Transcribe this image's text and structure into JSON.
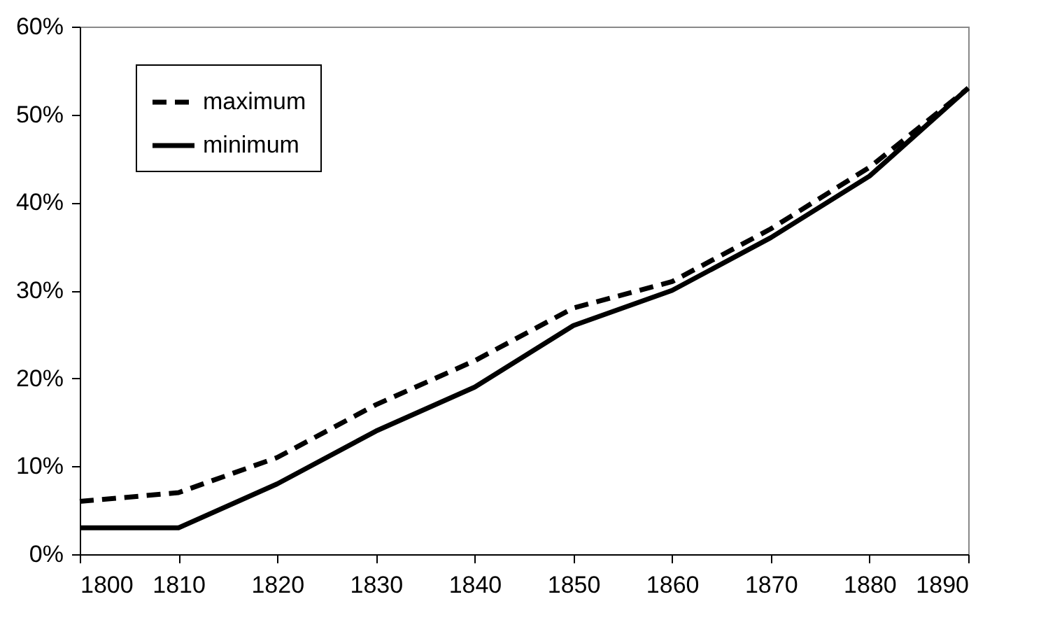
{
  "chart_data": {
    "type": "line",
    "x": [
      1800,
      1810,
      1820,
      1830,
      1840,
      1850,
      1860,
      1870,
      1880,
      1890
    ],
    "series": [
      {
        "name": "maximum",
        "color": "#000000",
        "line_style": "dashed",
        "values": [
          6,
          7,
          11,
          17,
          22,
          28,
          31,
          37,
          44,
          53
        ]
      },
      {
        "name": "minimum",
        "color": "#000000",
        "line_style": "solid",
        "values": [
          3,
          3,
          8,
          14,
          19,
          26,
          30,
          36,
          43,
          53
        ]
      }
    ],
    "xlim": [
      1800,
      1890
    ],
    "xticks": [
      1800,
      1810,
      1820,
      1830,
      1840,
      1850,
      1860,
      1870,
      1880,
      1890
    ],
    "ylim": [
      0,
      60
    ],
    "yticks": [
      {
        "value": 0,
        "label": "0%"
      },
      {
        "value": 10,
        "label": "10%"
      },
      {
        "value": 20,
        "label": "20%"
      },
      {
        "value": 30,
        "label": "30%"
      },
      {
        "value": 40,
        "label": "40%"
      },
      {
        "value": 50,
        "label": "50%"
      },
      {
        "value": 60,
        "label": "60%"
      }
    ],
    "grid": false,
    "legend": "top left",
    "marker": "none"
  }
}
